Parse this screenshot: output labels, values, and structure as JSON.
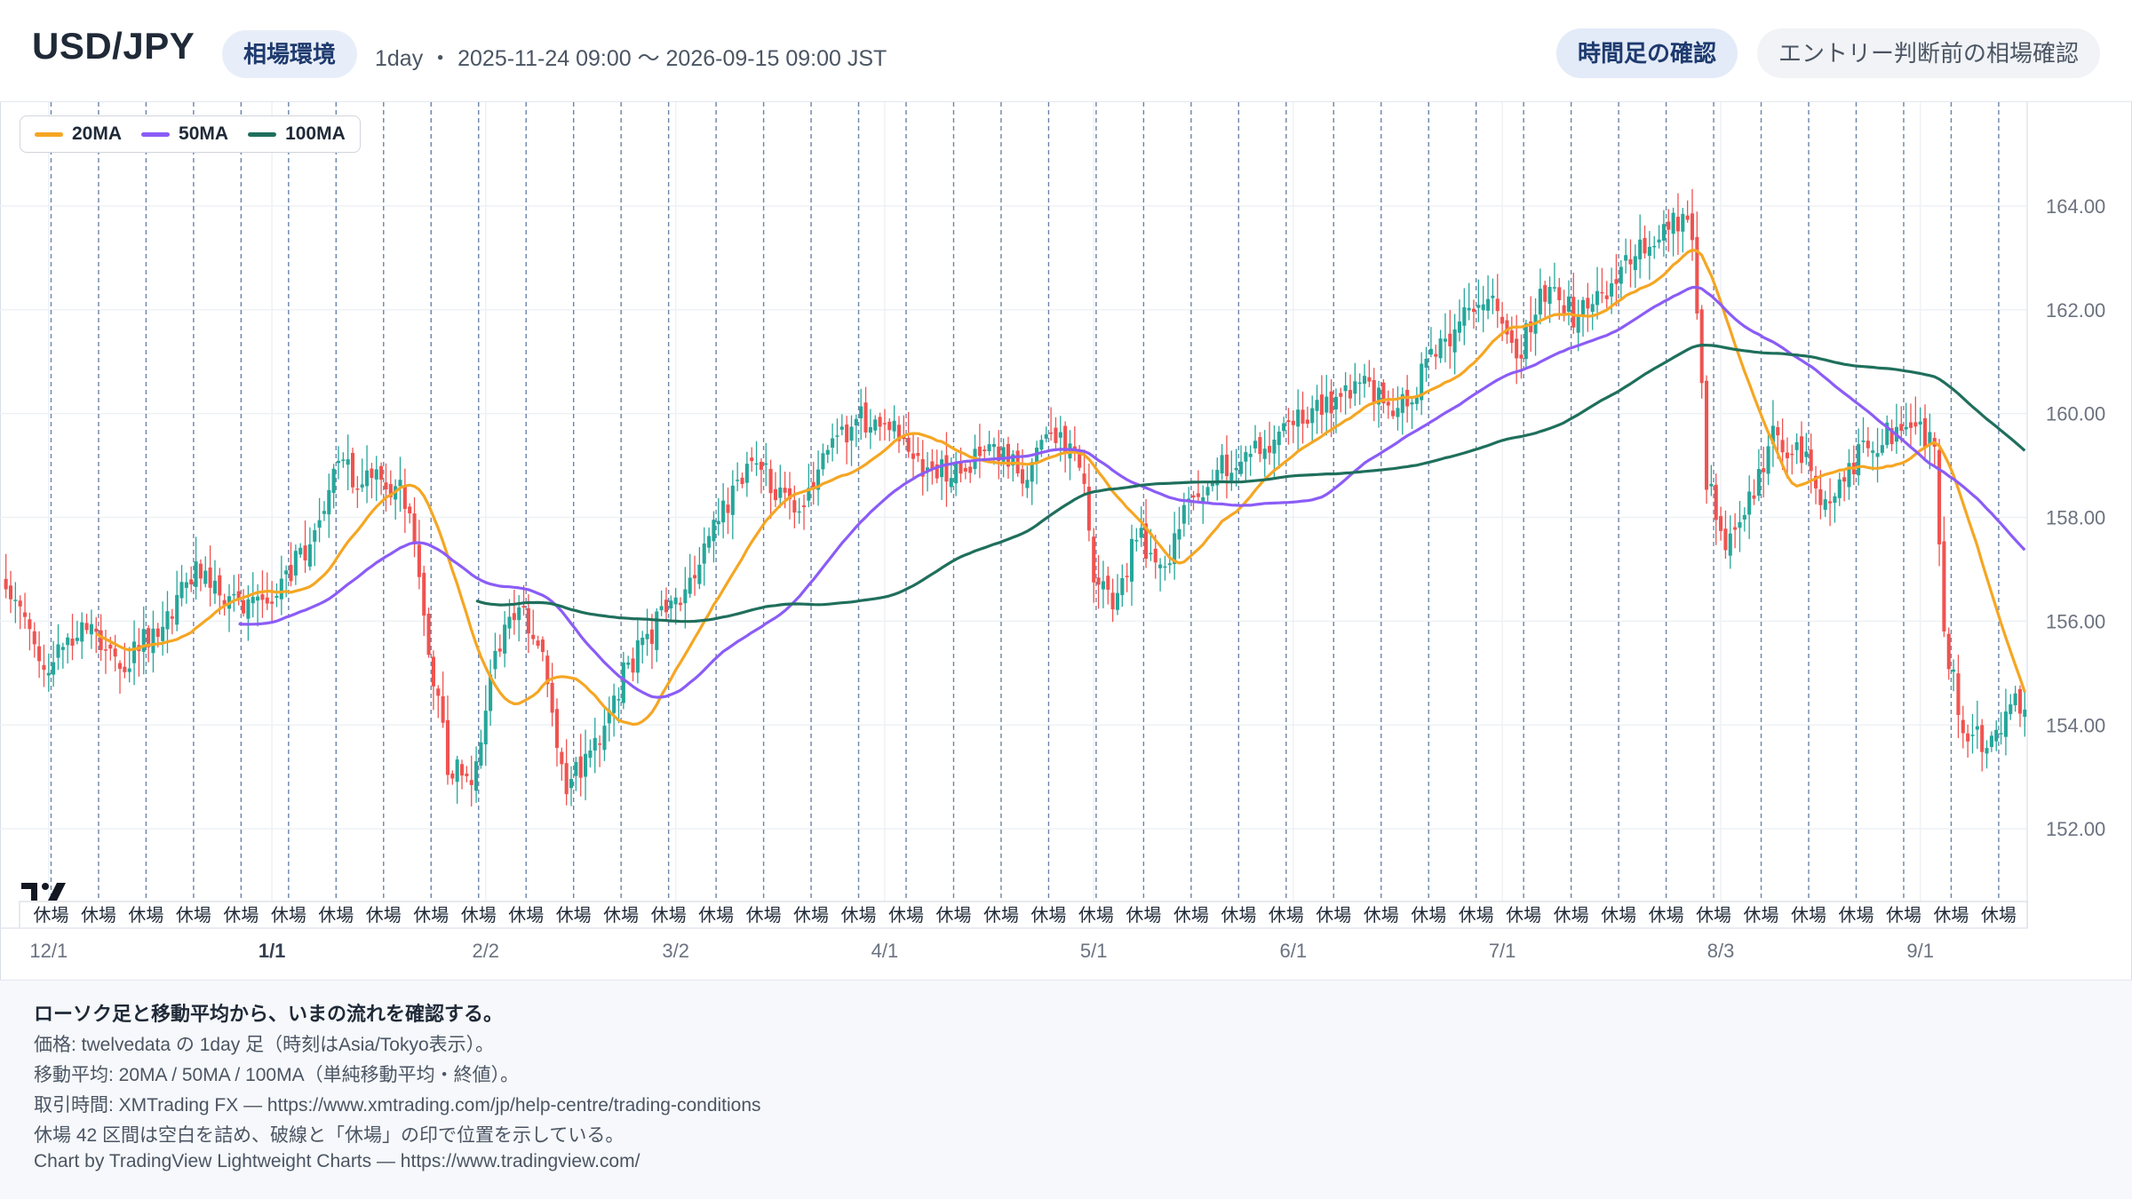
{
  "header": {
    "symbol": "USD/JPY",
    "env_label": "相場環境",
    "range_text": "1day ・ 2025-11-24 09:00 〜 2026-09-15 09:00 JST",
    "btn_timeframe": "時間足の確認",
    "btn_entry": "エントリー判断前の相場確認"
  },
  "legend": [
    {
      "label": "20MA",
      "color": "#f5a623"
    },
    {
      "label": "50MA",
      "color": "#8b5cf6"
    },
    {
      "label": "100MA",
      "color": "#1f6f5c"
    }
  ],
  "colors": {
    "up": "#26a69a",
    "down": "#ef5350",
    "grid": "#eef1f5",
    "gap_line": "#3a5a8c"
  },
  "holiday_label": "休場",
  "footer": {
    "headline": "ローソク足と移動平均から、いまの流れを確認する。",
    "lines": [
      "価格: twelvedata の 1day 足（時刻はAsia/Tokyo表示）。",
      "移動平均: 20MA / 50MA / 100MA（単純移動平均・終値）。",
      "取引時間: XMTrading FX — https://www.xmtrading.com/jp/help-centre/trading-conditions",
      "休場 42 区間は空白を詰め、破線と「休場」の印で位置を示している。",
      "Chart by TradingView Lightweight Charts — https://www.tradingview.com/"
    ]
  },
  "chart_data": {
    "type": "candlestick",
    "symbol": "USD/JPY",
    "timeframe": "1day",
    "yticks": [
      152,
      154,
      156,
      158,
      160,
      162,
      164
    ],
    "ylim": [
      150.6,
      166.0
    ],
    "x_tick_labels": [
      {
        "label": "12/1",
        "bar": 9,
        "bold": false
      },
      {
        "label": "1/1",
        "bar": 56,
        "bold": true
      },
      {
        "label": "2/2",
        "bar": 101,
        "bold": false
      },
      {
        "label": "3/2",
        "bar": 141,
        "bold": false
      },
      {
        "label": "4/1",
        "bar": 185,
        "bold": false
      },
      {
        "label": "5/1",
        "bar": 229,
        "bold": false
      },
      {
        "label": "6/1",
        "bar": 271,
        "bold": false
      },
      {
        "label": "7/1",
        "bar": 315,
        "bold": false
      },
      {
        "label": "8/3",
        "bar": 361,
        "bold": false
      },
      {
        "label": "9/1",
        "bar": 403,
        "bold": false
      }
    ],
    "holiday_gap_count": 42,
    "holiday_gaps_after_bar": [
      9,
      19,
      29,
      39,
      49,
      59,
      69,
      79,
      89,
      99,
      109,
      119,
      129,
      139,
      149,
      159,
      169,
      179,
      189,
      199,
      209,
      219,
      229,
      239,
      249,
      259,
      269,
      279,
      289,
      299,
      309,
      319,
      329,
      339,
      349,
      359,
      369,
      379,
      389,
      399,
      409,
      419
    ],
    "close_keypoints": [
      [
        0,
        156.6
      ],
      [
        8,
        155.1
      ],
      [
        16,
        155.9
      ],
      [
        24,
        155.2
      ],
      [
        32,
        155.8
      ],
      [
        40,
        157.0
      ],
      [
        48,
        156.3
      ],
      [
        55,
        156.5
      ],
      [
        62,
        157.2
      ],
      [
        70,
        158.9
      ],
      [
        78,
        158.7
      ],
      [
        84,
        158.4
      ],
      [
        88,
        156.2
      ],
      [
        93,
        153.2
      ],
      [
        98,
        152.9
      ],
      [
        103,
        155.4
      ],
      [
        108,
        156.4
      ],
      [
        113,
        155.2
      ],
      [
        118,
        152.8
      ],
      [
        124,
        153.6
      ],
      [
        130,
        155.0
      ],
      [
        136,
        155.8
      ],
      [
        142,
        156.5
      ],
      [
        150,
        157.9
      ],
      [
        156,
        159.1
      ],
      [
        162,
        158.6
      ],
      [
        166,
        158.0
      ],
      [
        172,
        159.1
      ],
      [
        178,
        159.8
      ],
      [
        184,
        160.0
      ],
      [
        190,
        159.2
      ],
      [
        198,
        158.8
      ],
      [
        206,
        159.3
      ],
      [
        214,
        158.9
      ],
      [
        222,
        159.6
      ],
      [
        226,
        159.2
      ],
      [
        229,
        157.0
      ],
      [
        234,
        156.3
      ],
      [
        238,
        157.7
      ],
      [
        244,
        157.0
      ],
      [
        248,
        158.0
      ],
      [
        254,
        158.9
      ],
      [
        262,
        159.2
      ],
      [
        270,
        159.8
      ],
      [
        278,
        160.2
      ],
      [
        286,
        160.5
      ],
      [
        294,
        160.1
      ],
      [
        300,
        161.0
      ],
      [
        306,
        161.8
      ],
      [
        312,
        162.3
      ],
      [
        318,
        161.0
      ],
      [
        324,
        162.4
      ],
      [
        330,
        161.9
      ],
      [
        336,
        162.2
      ],
      [
        342,
        163.0
      ],
      [
        350,
        163.8
      ],
      [
        355,
        163.5
      ],
      [
        358,
        158.8
      ],
      [
        362,
        157.4
      ],
      [
        368,
        158.6
      ],
      [
        372,
        159.5
      ],
      [
        378,
        159.3
      ],
      [
        384,
        158.1
      ],
      [
        390,
        159.2
      ],
      [
        396,
        159.6
      ],
      [
        402,
        159.9
      ],
      [
        406,
        159.3
      ],
      [
        408,
        155.7
      ],
      [
        412,
        153.9
      ],
      [
        418,
        153.6
      ],
      [
        422,
        154.4
      ]
    ]
  }
}
